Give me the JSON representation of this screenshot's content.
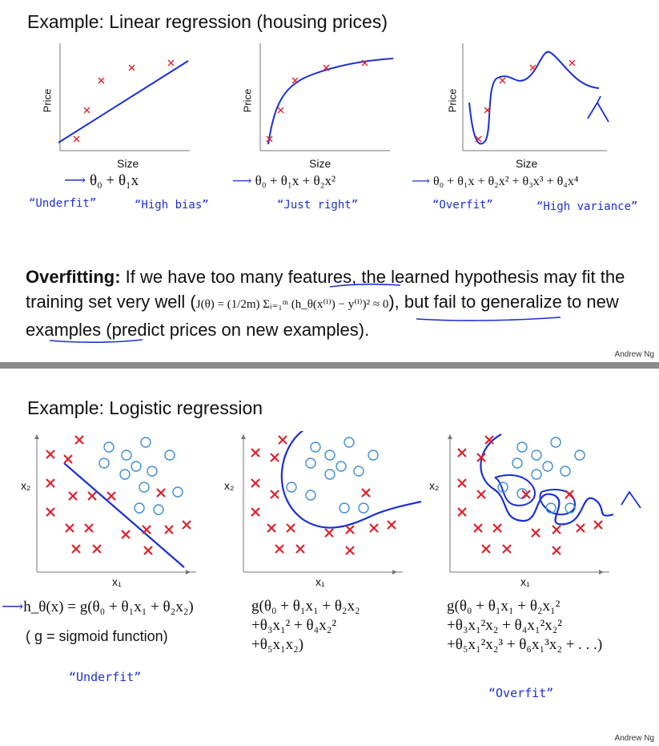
{
  "slide1": {
    "title": "Example: Linear regression (housing prices)",
    "plots": [
      {
        "ylabel": "Price",
        "xlabel": "Size",
        "equation": "θ₀ + θ₁x",
        "note1": "“Underfit”",
        "note2": "“High bias”"
      },
      {
        "ylabel": "Price",
        "xlabel": "Size",
        "equation": "θ₀ + θ₁x + θ₂x²",
        "note1": "“Just right”"
      },
      {
        "ylabel": "Price",
        "xlabel": "Size",
        "equation": "θ₀ + θ₁x + θ₂x² + θ₃x³ + θ₄x⁴",
        "note1": "“Overfit”",
        "note2": "“High variance”"
      }
    ],
    "overfitting_label": "Overfitting:",
    "overfitting_text_1": " If we have too many features, the learned hypothesis may fit the training set very well (",
    "overfitting_math": "J(θ) = (1/2m) Σᵢ₌₁ᵐ (h_θ(x⁽ⁱ⁾) − y⁽ⁱ⁾)² ≈ 0",
    "overfitting_text_2": "), but fail to generalize to new examples (predict prices on new examples).",
    "credit": "Andrew Ng"
  },
  "slide2": {
    "title": "Example: Logistic regression",
    "plots": [
      {
        "ylabel": "x₂",
        "xlabel": "x₁"
      },
      {
        "ylabel": "x₂",
        "xlabel": "x₁"
      },
      {
        "ylabel": "x₂",
        "xlabel": "x₁"
      }
    ],
    "eq1_line1": "h_θ(x) = g(θ₀ + θ₁x₁ + θ₂x₂)",
    "eq1_line2": "( g = sigmoid function)",
    "eq1_note": "“Underfit”",
    "eq2_line1": "g(θ₀ + θ₁x₁ + θ₂x₂",
    "eq2_line2": "+θ₃x₁² + θ₄x₂²",
    "eq2_line3": "+θ₅x₁x₂)",
    "eq3_line1": "g(θ₀ + θ₁x₁ + θ₂x₁²",
    "eq3_line2": "+θ₃x₁²x₂ + θ₄x₁²x₂²",
    "eq3_line3": "+θ₅x₁²x₂³ + θ₆x₁³x₂ + . . .)",
    "eq3_note": "“Overfit”",
    "credit": "Andrew Ng"
  },
  "colors": {
    "ink": "#1a2fd6",
    "cross": "#e0202a",
    "circle": "#3a8ed6",
    "axis": "#777777"
  }
}
